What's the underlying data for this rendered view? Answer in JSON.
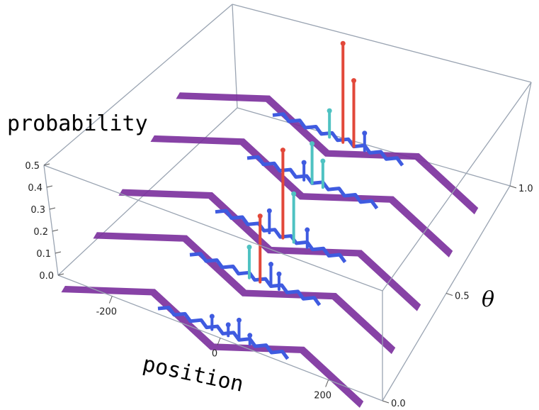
{
  "chart_data": {
    "type": "surface3d",
    "title": "",
    "xlabel": "position",
    "ylabel": "θ",
    "zlabel": "probability",
    "xlim": [
      -300,
      300
    ],
    "ylim": [
      0.0,
      1.0
    ],
    "zlim": [
      0.0,
      0.5
    ],
    "x_ticks": [
      "-200",
      "0",
      "200"
    ],
    "y_ticks": [
      "0.0",
      "0.5",
      "1.0"
    ],
    "z_ticks": [
      "0.0",
      "0.1",
      "0.2",
      "0.3",
      "0.4",
      "0.5"
    ],
    "colors": {
      "base": "#7a2d9c",
      "low": "#3f5be0",
      "mid": "#4fc2c2",
      "high": "#e2483a",
      "box": "#9aa4b2"
    },
    "series": [
      {
        "theta": 0.0,
        "peaks": [
          {
            "x": 10,
            "p": 0.05
          },
          {
            "x": 30,
            "p": 0.09
          },
          {
            "x": -20,
            "p": 0.06
          },
          {
            "x": 50,
            "p": 0.04
          }
        ]
      },
      {
        "theta": 0.25,
        "peaks": [
          {
            "x": 10,
            "p": 0.3
          },
          {
            "x": -10,
            "p": 0.14
          },
          {
            "x": 30,
            "p": 0.1
          },
          {
            "x": 45,
            "p": 0.07
          }
        ]
      },
      {
        "theta": 0.45,
        "peaks": [
          {
            "x": 5,
            "p": 0.4
          },
          {
            "x": 25,
            "p": 0.22
          },
          {
            "x": -20,
            "p": 0.1
          },
          {
            "x": 50,
            "p": 0.08
          }
        ]
      },
      {
        "theta": 0.7,
        "peaks": [
          {
            "x": 0,
            "p": 0.18
          },
          {
            "x": 20,
            "p": 0.12
          },
          {
            "x": -15,
            "p": 0.08
          }
        ]
      },
      {
        "theta": 0.9,
        "peaks": [
          {
            "x": 10,
            "p": 0.45
          },
          {
            "x": 30,
            "p": 0.3
          },
          {
            "x": -15,
            "p": 0.12
          },
          {
            "x": 50,
            "p": 0.08
          }
        ]
      }
    ]
  }
}
